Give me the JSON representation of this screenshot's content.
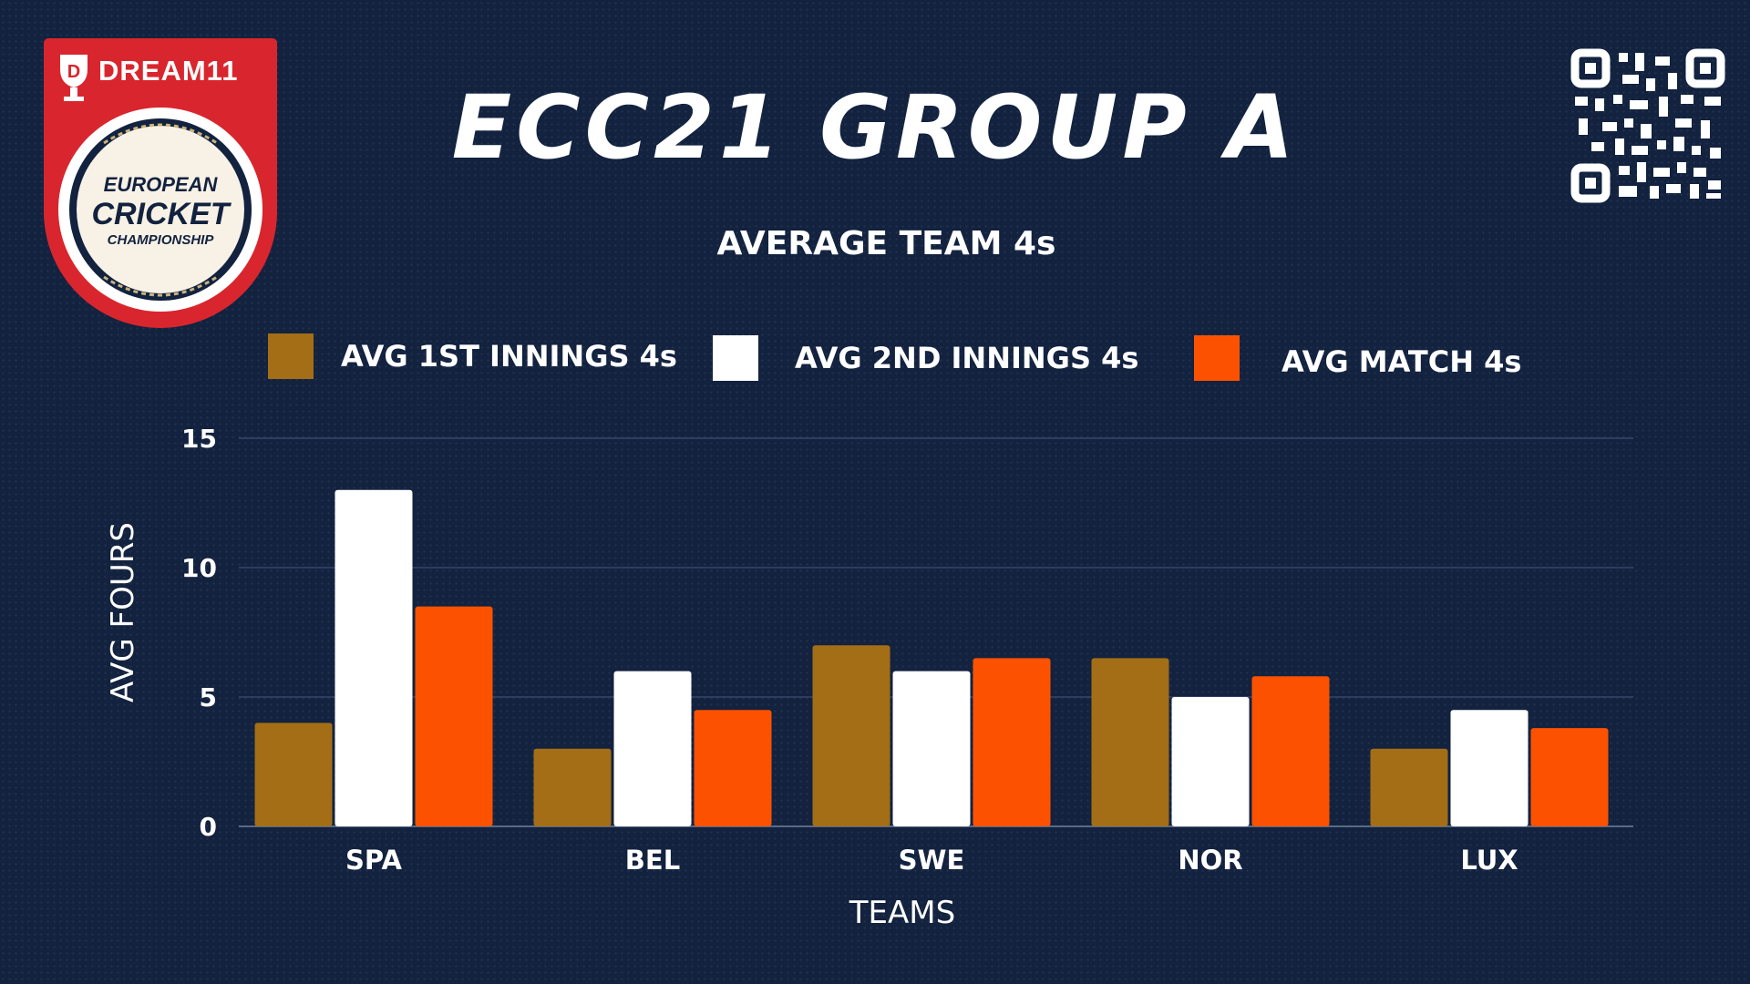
{
  "branding": {
    "sponsor": "DREAM11",
    "logo_line1": "EUROPEAN",
    "logo_line2": "CRICKET",
    "logo_line3": "CHAMPIONSHIP"
  },
  "colors": {
    "background": "#12223f",
    "series1": "#a36e16",
    "series2": "#ffffff",
    "series3": "#fc5200",
    "logo_red": "#d9262e"
  },
  "chart_data": {
    "type": "bar",
    "title": "ECC21 GROUP A",
    "subtitle": "AVERAGE TEAM 4s",
    "xlabel": "TEAMS",
    "ylabel": "AVG FOURS",
    "ylim": [
      0,
      15
    ],
    "yticks": [
      0,
      5,
      10,
      15
    ],
    "grid": true,
    "legend_position": "top",
    "categories": [
      "SPA",
      "BEL",
      "SWE",
      "NOR",
      "LUX"
    ],
    "series": [
      {
        "name": "AVG 1ST INNINGS 4s",
        "values": [
          4,
          3,
          7,
          6.5,
          3
        ]
      },
      {
        "name": "AVG 2ND INNINGS 4s",
        "values": [
          13,
          6,
          6,
          5,
          4.5
        ]
      },
      {
        "name": "AVG MATCH 4s",
        "values": [
          8.5,
          4.5,
          6.5,
          5.8,
          3.8
        ]
      }
    ]
  }
}
